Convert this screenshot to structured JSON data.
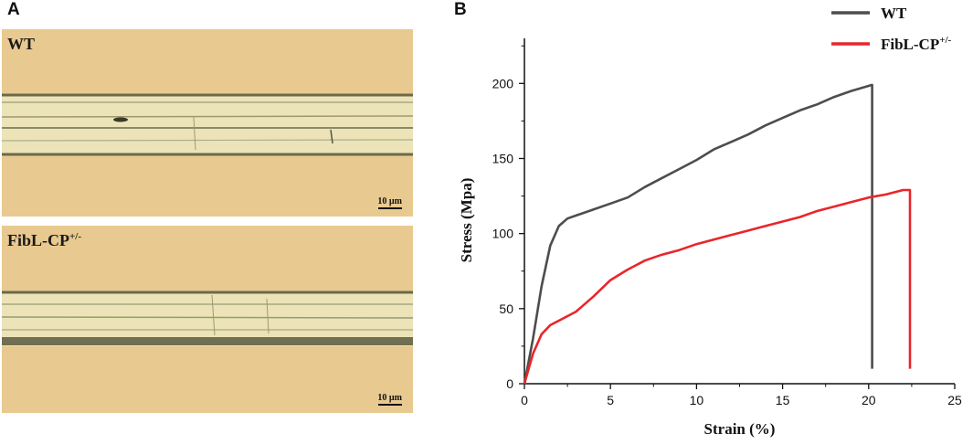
{
  "panel_a": {
    "letter": "A",
    "images": [
      {
        "label": "WT",
        "label_sup": "",
        "scale_bar": "10 µm"
      },
      {
        "label": "FibL-CP",
        "label_sup": "+/-",
        "scale_bar": "10 µm"
      }
    ]
  },
  "panel_b": {
    "letter": "B"
  },
  "chart_data": {
    "type": "line",
    "xlabel": "Strain (%)",
    "ylabel": "Stress (Mpa)",
    "xlim": [
      0,
      25
    ],
    "ylim": [
      0,
      230
    ],
    "xticks": [
      0,
      5,
      10,
      15,
      20,
      25
    ],
    "yticks": [
      0,
      50,
      100,
      150,
      200
    ],
    "grid": false,
    "legend_placement": "top-right",
    "series": [
      {
        "name": "WT",
        "name_sup": "",
        "color": "#4d4d4d",
        "points": [
          [
            0,
            0
          ],
          [
            0.5,
            30
          ],
          [
            1,
            65
          ],
          [
            1.5,
            92
          ],
          [
            2,
            105
          ],
          [
            2.5,
            110
          ],
          [
            3,
            112
          ],
          [
            4,
            116
          ],
          [
            5,
            120
          ],
          [
            6,
            124
          ],
          [
            7,
            131
          ],
          [
            8,
            137
          ],
          [
            9,
            143
          ],
          [
            10,
            149
          ],
          [
            11,
            156
          ],
          [
            12,
            161
          ],
          [
            13,
            166
          ],
          [
            14,
            172
          ],
          [
            15,
            177
          ],
          [
            16,
            182
          ],
          [
            17,
            186
          ],
          [
            18,
            191
          ],
          [
            19,
            195
          ],
          [
            20.2,
            199
          ],
          [
            20.2,
            10
          ]
        ]
      },
      {
        "name": "FibL-CP",
        "name_sup": "+/-",
        "color": "#e8262b",
        "points": [
          [
            0,
            0
          ],
          [
            0.5,
            20
          ],
          [
            1,
            33
          ],
          [
            1.5,
            39
          ],
          [
            2,
            42
          ],
          [
            3,
            48
          ],
          [
            4,
            58
          ],
          [
            5,
            69
          ],
          [
            6,
            76
          ],
          [
            7,
            82
          ],
          [
            8,
            86
          ],
          [
            9,
            89
          ],
          [
            10,
            93
          ],
          [
            11,
            96
          ],
          [
            12,
            99
          ],
          [
            13,
            102
          ],
          [
            14,
            105
          ],
          [
            15,
            108
          ],
          [
            16,
            111
          ],
          [
            17,
            115
          ],
          [
            18,
            118
          ],
          [
            19,
            121
          ],
          [
            20,
            124
          ],
          [
            21,
            126
          ],
          [
            22,
            129
          ],
          [
            22.4,
            129
          ],
          [
            22.4,
            10
          ]
        ]
      }
    ]
  }
}
